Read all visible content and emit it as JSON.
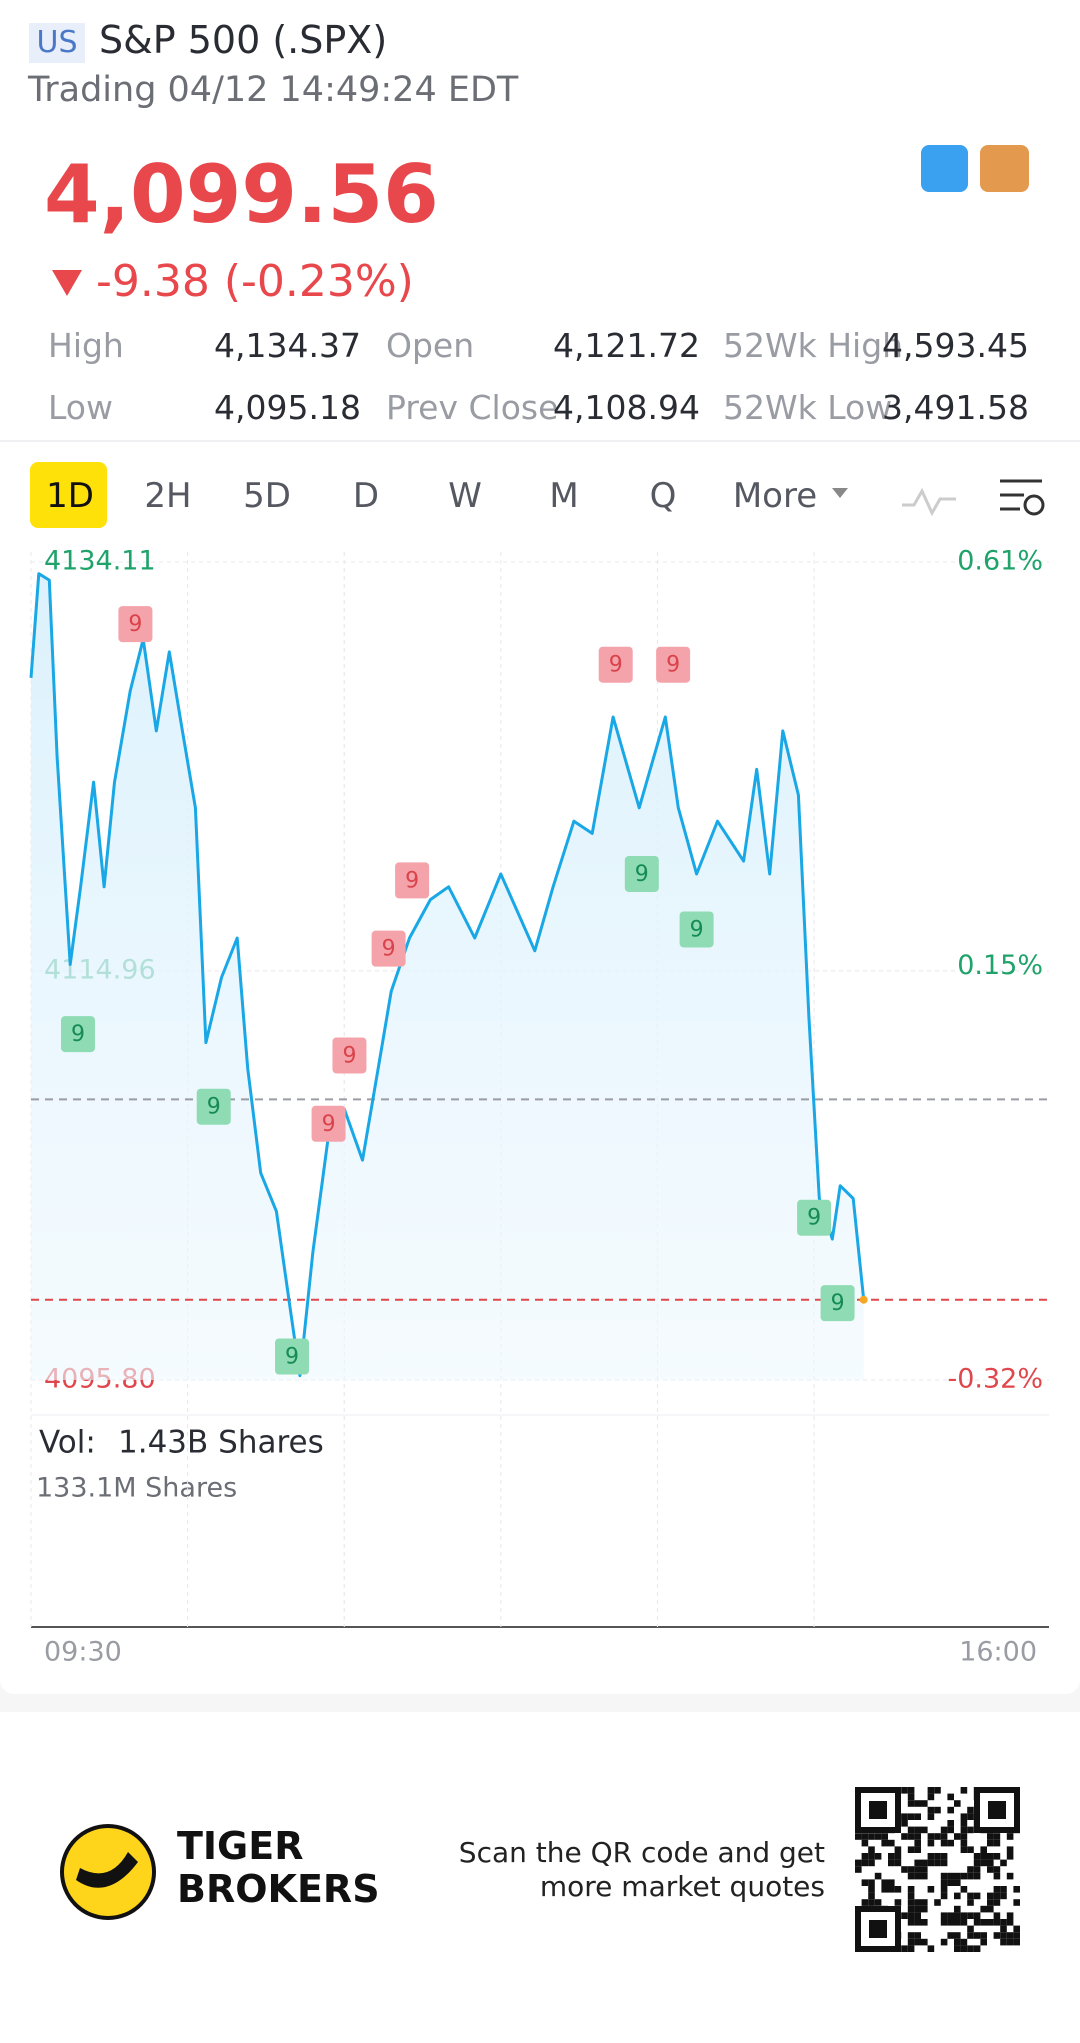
{
  "header": {
    "badge": "US",
    "title": "S&P 500 (.SPX)",
    "status": "Trading 04/12 14:49:24 EDT",
    "price": "4,099.56",
    "change": "-9.38 (-0.23%)"
  },
  "stats": [
    [
      {
        "label": "High",
        "value": "4,134.37"
      },
      {
        "label": "Open",
        "value": "4,121.72"
      },
      {
        "label": "52Wk High",
        "value": "4,593.45"
      }
    ],
    [
      {
        "label": "Low",
        "value": "4,095.18"
      },
      {
        "label": "Prev Close",
        "value": "4,108.94"
      },
      {
        "label": "52Wk Low",
        "value": "3,491.58"
      }
    ]
  ],
  "tabs": [
    "1D",
    "2H",
    "5D",
    "D",
    "W",
    "M",
    "Q",
    "More"
  ],
  "chart_data": {
    "type": "line",
    "x": [
      "09:30",
      "09:33",
      "09:37",
      "09:40",
      "09:45",
      "09:49",
      "09:54",
      "09:58",
      "10:02",
      "10:08",
      "10:13",
      "10:18",
      "10:23",
      "10:28",
      "10:33",
      "10:37",
      "10:43",
      "10:49",
      "10:53",
      "10:58",
      "11:04",
      "11:09",
      "11:13",
      "11:18",
      "11:24",
      "11:30",
      "11:37",
      "11:43",
      "11:48",
      "11:55",
      "12:03",
      "12:10",
      "12:20",
      "12:30",
      "12:43",
      "12:50",
      "12:58",
      "13:05",
      "13:13",
      "13:23",
      "13:33",
      "13:38",
      "13:45",
      "13:53",
      "14:03",
      "14:08",
      "14:13",
      "14:18",
      "14:24",
      "14:28",
      "14:32",
      "14:37",
      "14:40",
      "14:45",
      "14:49"
    ],
    "series": [
      {
        "color": "#1aa7e6",
        "values": [
          4128.68,
          4133.56,
          4133.26,
          4125.0,
          4115.26,
          4118.9,
          4123.8,
          4118.9,
          4123.8,
          4128.07,
          4130.5,
          4126.2,
          4129.9,
          4126.2,
          4122.6,
          4111.6,
          4114.65,
          4116.5,
          4110.4,
          4105.5,
          4103.7,
          4099.4,
          4096.0,
          4101.8,
          4107.3,
          4108.5,
          4106.1,
          4110.4,
          4114.0,
          4116.5,
          4118.3,
          4118.9,
          4116.5,
          4119.5,
          4115.9,
          4118.9,
          4121.97,
          4121.4,
          4126.85,
          4122.6,
          4126.85,
          4122.6,
          4119.5,
          4121.97,
          4120.1,
          4124.4,
          4119.5,
          4126.2,
          4123.2,
          4112.8,
          4104.3,
          4102.4,
          4104.9,
          4104.3,
          4099.56
        ]
      }
    ],
    "xlim": [
      "09:30",
      "16:00"
    ],
    "xticks": [
      "09:30",
      "16:00"
    ],
    "xgrid": [
      "10:30",
      "11:30",
      "12:30",
      "13:30",
      "14:30"
    ],
    "ylim": [
      4095.8,
      4134.11
    ],
    "yticks": [
      4134.11,
      4114.96,
      {
        "value": 4095.8,
        "label": "4095.80"
      }
    ],
    "ytick_colors": [
      "#1fa36a",
      "#1fa36a",
      "#e0474c"
    ],
    "y2lim": [
      -0.32,
      0.61
    ],
    "y2ticks": [
      {
        "value": 0.61,
        "label": "0.61%"
      },
      {
        "value": 0.15,
        "label": "0.15%"
      },
      {
        "value": -0.32,
        "label": "-0.32%"
      }
    ],
    "reference_lines": [
      {
        "value": 4108.94,
        "color": "#9a9ca3"
      },
      {
        "value": 4099.56,
        "color": "#e0474c"
      }
    ],
    "markers": [
      {
        "x": "10:10",
        "value": 4131.2,
        "label": "9",
        "color": "#f5a3aa"
      },
      {
        "x": "09:48",
        "value": 4112.0,
        "label": "9",
        "color": "#8fdcb4"
      },
      {
        "x": "10:40",
        "value": 4108.6,
        "label": "9",
        "color": "#8fdcb4"
      },
      {
        "x": "11:32",
        "value": 4111.0,
        "label": "9",
        "color": "#f5a3aa"
      },
      {
        "x": "11:24",
        "value": 4107.8,
        "label": "9",
        "color": "#f5a3aa"
      },
      {
        "x": "11:10",
        "value": 4096.9,
        "label": "9",
        "color": "#8fdcb4"
      },
      {
        "x": "11:47",
        "value": 4116.0,
        "label": "9",
        "color": "#f5a3aa"
      },
      {
        "x": "11:56",
        "value": 4119.2,
        "label": "9",
        "color": "#f5a3aa"
      },
      {
        "x": "13:14",
        "value": 4129.3,
        "label": "9",
        "color": "#f5a3aa"
      },
      {
        "x": "13:36",
        "value": 4129.3,
        "label": "9",
        "color": "#f5a3aa"
      },
      {
        "x": "13:24",
        "value": 4119.5,
        "label": "9",
        "color": "#8fdcb4"
      },
      {
        "x": "13:45",
        "value": 4116.9,
        "label": "9",
        "color": "#8fdcb4"
      },
      {
        "x": "14:30",
        "value": 4103.4,
        "label": "9",
        "color": "#8fdcb4"
      },
      {
        "x": "14:39",
        "value": 4099.4,
        "label": "9",
        "color": "#8fdcb4"
      }
    ],
    "volume_label": "Vol:",
    "volume_total": "1.43B Shares",
    "volume_max": "133.1M Shares"
  },
  "footer": {
    "brand_line1": "TIGER",
    "brand_line2": "BROKERS",
    "qr_line1": "Scan the QR code and get",
    "qr_line2": "more market quotes"
  }
}
